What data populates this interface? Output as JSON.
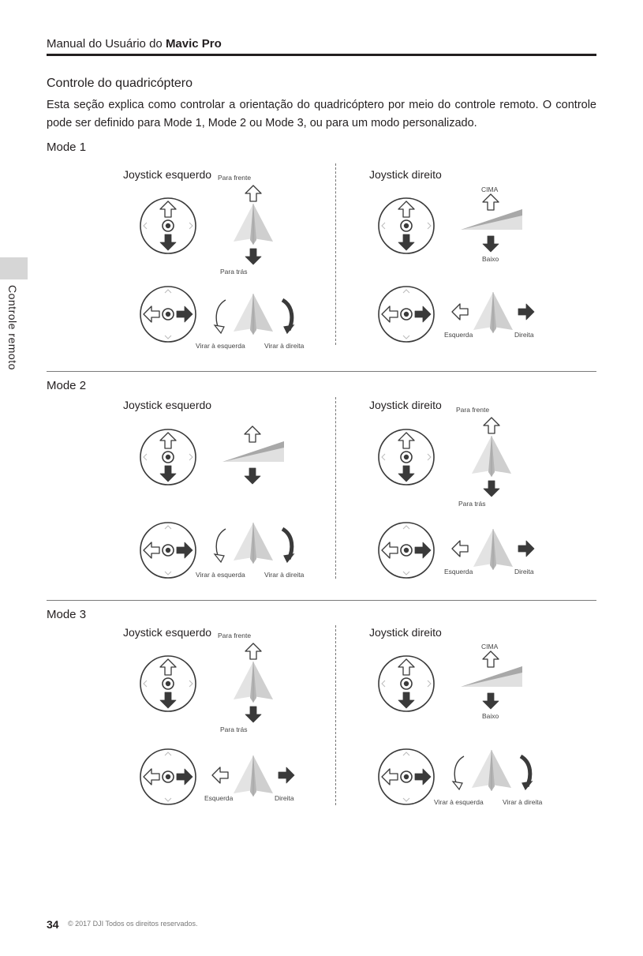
{
  "header": {
    "prefix": "Manual do Usuário do ",
    "product": "Mavic Pro"
  },
  "section_title": "Controle do quadricóptero",
  "intro": "Esta seção explica como controlar a orientação do quadricóptero por meio do controle remoto. O controle pode ser definido para Mode 1, Mode 2 ou Mode 3, ou para um modo personalizado.",
  "side_tab": "Controle remoto",
  "footer": {
    "page": "34",
    "copyright": "© 2017 DJI Todos os direitos reservados."
  },
  "labels": {
    "left": "Joystick esquerdo",
    "right": "Joystick direito",
    "forward": "Para frente",
    "back": "Para trás",
    "up": "CIMA",
    "down": "Baixo",
    "turn_left": "Virar à esquerda",
    "turn_right": "Virar à direita",
    "left_dir": "Esquerda",
    "right_dir": "Direita"
  },
  "modes": [
    {
      "name": "Mode 1"
    },
    {
      "name": "Mode 2"
    },
    {
      "name": "Mode 3"
    }
  ]
}
